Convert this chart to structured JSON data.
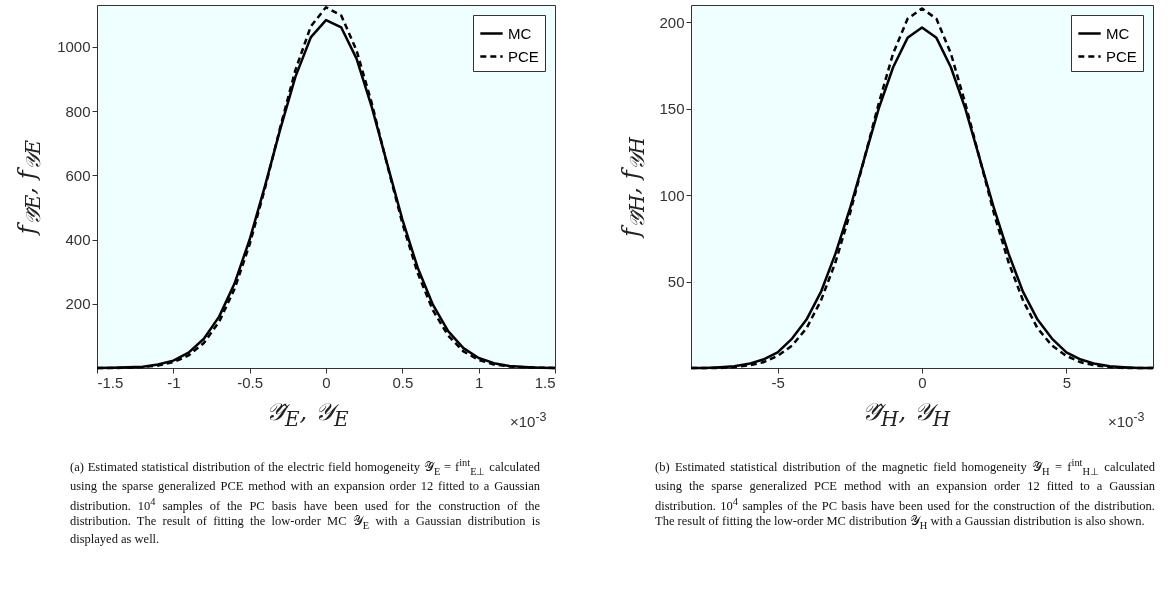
{
  "chart_data": [
    {
      "type": "line",
      "xlabel": "𝒴̂$_{E}$, 𝒴$_{E}$",
      "ylabel": "f$_{𝒴̂E}$, f$_{𝒴E}$",
      "x": [
        -1.5,
        -1.4,
        -1.3,
        -1.2,
        -1.1,
        -1.0,
        -0.9,
        -0.8,
        -0.7,
        -0.6,
        -0.5,
        -0.4,
        -0.3,
        -0.2,
        -0.1,
        0,
        0.1,
        0.2,
        0.3,
        0.4,
        0.5,
        0.6,
        0.7,
        0.8,
        0.9,
        1.0,
        1.1,
        1.2,
        1.3,
        1.4,
        1.5
      ],
      "series": [
        {
          "name": "MC",
          "color": "#000000",
          "line_style": "solid",
          "values": [
            0,
            1,
            2,
            4,
            11,
            23,
            48,
            91,
            160,
            262,
            400,
            566,
            743,
            907,
            1029,
            1083,
            1060,
            963,
            812,
            637,
            463,
            313,
            197,
            115,
            62,
            31,
            15,
            6,
            3,
            1,
            0
          ]
        },
        {
          "name": "PCE",
          "color": "#000000",
          "line_style": "dashed",
          "values": [
            0,
            0,
            1,
            3,
            8,
            18,
            39,
            78,
            144,
            245,
            385,
            559,
            749,
            928,
            1063,
            1123,
            1097,
            989,
            824,
            634,
            451,
            296,
            180,
            101,
            52,
            25,
            11,
            5,
            2,
            1,
            0
          ]
        }
      ],
      "xlim": [
        -1.5,
        1.5
      ],
      "xticks": [
        -1.5,
        -1,
        -0.5,
        0,
        0.5,
        1,
        1.5
      ],
      "ylim": [
        0,
        1130
      ],
      "yticks": [
        200,
        400,
        600,
        800,
        1000
      ],
      "grid": false,
      "legend": "top right",
      "marker": "none",
      "annotations": [
        "×10$^{-3}$",
        "(a) Estimated statistical distribution of the electric field homogeneity 𝒴̂$_{E}$ = f$^{int}$$_{E⊥}$ calculated using the sparse generalized PCE method with an expansion order 12 fitted to a Gaussian distribution. 10$^{4}$ samples of the PC basis have been used for the construction of the distribution. The result of fitting the low-order MC 𝒴$_{E}$ with a Gaussian distribution is displayed as well."
      ]
    },
    {
      "type": "line",
      "xlabel": "𝒴̂$_{H}$, 𝒴$_{H}$",
      "ylabel": "f$_{𝒴̂H}$, f$_{𝒴H}$",
      "x": [
        -8,
        -7.5,
        -7,
        -6.5,
        -6,
        -5.5,
        -5,
        -4.5,
        -4,
        -3.5,
        -3,
        -2.5,
        -2,
        -1.5,
        -1,
        -0.5,
        0,
        0.5,
        1,
        1.5,
        2,
        2.5,
        3,
        3.5,
        4,
        4.5,
        5,
        5.5,
        6,
        6.5,
        7,
        7.5,
        8
      ],
      "series": [
        {
          "name": "MC",
          "color": "#000000",
          "line_style": "solid",
          "values": [
            0,
            0,
            0.5,
            1,
            2.4,
            4.9,
            9,
            17,
            28,
            44,
            66,
            92,
            121,
            150,
            174,
            191,
            197,
            191,
            174,
            150,
            121,
            92,
            66,
            44,
            28,
            17,
            9,
            4.9,
            2.4,
            1,
            0.5,
            0,
            0
          ]
        },
        {
          "name": "PCE",
          "color": "#000000",
          "line_style": "dashed",
          "values": [
            0,
            0,
            0,
            0.6,
            1.5,
            3.3,
            7,
            13,
            23,
            39,
            61,
            89,
            121,
            153,
            182,
            202,
            208,
            202,
            182,
            153,
            121,
            89,
            61,
            39,
            23,
            13,
            7,
            3.3,
            1.5,
            0.6,
            0,
            0,
            0
          ]
        }
      ],
      "xlim": [
        -8,
        8
      ],
      "xticks": [
        -5,
        0,
        5
      ],
      "ylim": [
        0,
        210
      ],
      "yticks": [
        50,
        100,
        150,
        200
      ],
      "grid": false,
      "legend": "top right",
      "marker": "none",
      "annotations": [
        "×10$^{-3}$",
        "(b) Estimated statistical distribution of the magnetic field homogeneity 𝒴̂$_{H}$ = f$^{int}$$_{H⊥}$ calculated using the sparse generalized PCE method with an expansion order 12 fitted to a Gaussian distribution. 10$^{4}$ samples of the PC basis have been used for the construction of the distribution. The result of fitting the low-order MC distribution 𝒴$_{H}$ with a Gaussian distribution is also shown."
      ]
    }
  ]
}
